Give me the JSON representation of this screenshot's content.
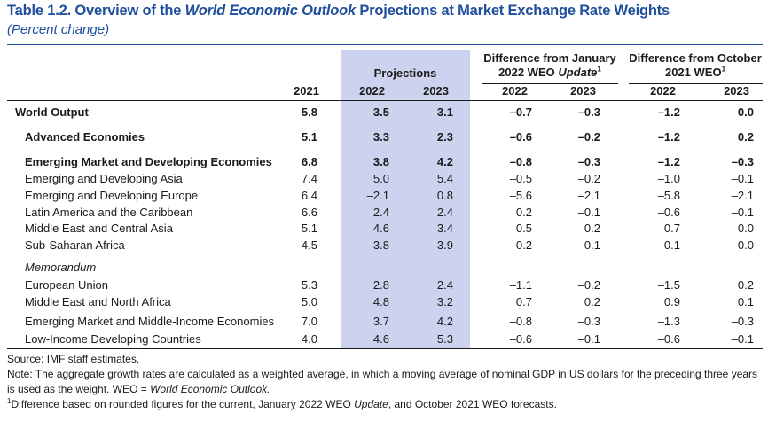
{
  "header": {
    "title_prefix": "Table 1.2. Overview of the ",
    "title_italic": "World Economic Outlook",
    "title_suffix": " Projections at Market Exchange Rate Weights",
    "subtitle": "(Percent change)"
  },
  "columns": {
    "projections": "Projections",
    "jan_diff_line1": "Difference from January",
    "jan_diff_line2_a": "2022 WEO ",
    "jan_diff_line2_italic": "Update",
    "jan_diff_sup": "1",
    "oct_diff_line1": "Difference from October",
    "oct_diff_line2": "2021 WEO",
    "oct_diff_sup": "1",
    "years": [
      "2021",
      "2022",
      "2023",
      "2022",
      "2023",
      "2022",
      "2023"
    ]
  },
  "rows": [
    {
      "label": "World Output",
      "values": [
        "5.8",
        "3.5",
        "3.1",
        "–0.7",
        "–0.3",
        "–1.2",
        "0.0"
      ]
    },
    {
      "label": "Advanced Economies",
      "values": [
        "5.1",
        "3.3",
        "2.3",
        "–0.6",
        "–0.2",
        "–1.2",
        "0.2"
      ]
    },
    {
      "label": "Emerging Market and Developing Economies",
      "values": [
        "6.8",
        "3.8",
        "4.2",
        "–0.8",
        "–0.3",
        "–1.2",
        "–0.3"
      ]
    },
    {
      "label": "Emerging and Developing Asia",
      "values": [
        "7.4",
        "5.0",
        "5.4",
        "–0.5",
        "–0.2",
        "–1.0",
        "–0.1"
      ]
    },
    {
      "label": "Emerging and Developing Europe",
      "values": [
        "6.4",
        "–2.1",
        "0.8",
        "–5.6",
        "–2.1",
        "–5.8",
        "–2.1"
      ]
    },
    {
      "label": "Latin America and the Caribbean",
      "values": [
        "6.6",
        "2.4",
        "2.4",
        "0.2",
        "–0.1",
        "–0.6",
        "–0.1"
      ]
    },
    {
      "label": "Middle East and Central Asia",
      "values": [
        "5.1",
        "4.6",
        "3.4",
        "0.5",
        "0.2",
        "0.7",
        "0.0"
      ]
    },
    {
      "label": "Sub-Saharan Africa",
      "values": [
        "4.5",
        "3.8",
        "3.9",
        "0.2",
        "0.1",
        "0.1",
        "0.0"
      ]
    },
    {
      "label": "Memorandum",
      "values": []
    },
    {
      "label": "European Union",
      "values": [
        "5.3",
        "2.8",
        "2.4",
        "–1.1",
        "–0.2",
        "–1.5",
        "0.2"
      ]
    },
    {
      "label": "Middle East and North Africa",
      "values": [
        "5.0",
        "4.8",
        "3.2",
        "0.7",
        "0.2",
        "0.9",
        "0.1"
      ]
    },
    {
      "label": "Emerging Market and Middle-Income Economies",
      "values": [
        "7.0",
        "3.7",
        "4.2",
        "–0.8",
        "–0.3",
        "–1.3",
        "–0.3"
      ]
    },
    {
      "label": "Low-Income Developing Countries",
      "values": [
        "4.0",
        "4.6",
        "5.3",
        "–0.6",
        "–0.1",
        "–0.6",
        "–0.1"
      ]
    }
  ],
  "notes": {
    "source": "Source: IMF staff estimates.",
    "note_a": "Note: The aggregate growth rates are calculated as a weighted average, in which a moving average of nominal GDP in US dollars for the preceding three years",
    "note_b": "is used as the weight. WEO = ",
    "note_b_italic": "World Economic Outlook.",
    "fn_sup": "1",
    "fn_a": "Difference based on rounded figures for the current, January 2022 WEO ",
    "fn_italic": "Update",
    "fn_b": ", and October 2021 WEO forecasts."
  }
}
